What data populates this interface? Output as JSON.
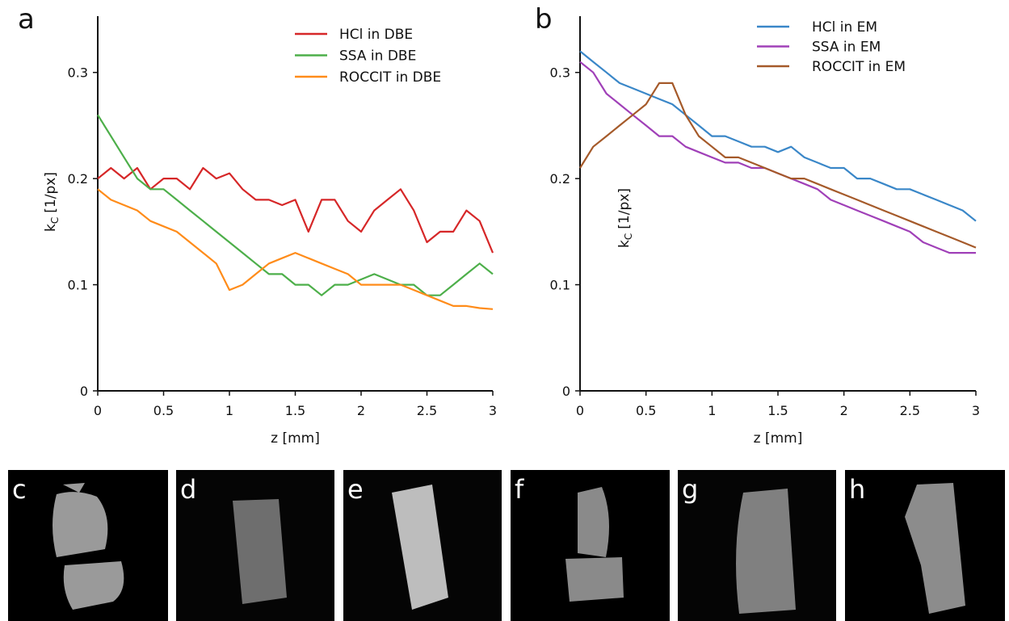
{
  "chart_data": [
    {
      "type": "line",
      "panel_label": "a",
      "xlabel": "z [mm]",
      "ylabel": "k",
      "ylabel_subscript": "C",
      "ylabel_unit": "[1/px]",
      "x": [
        0,
        0.1,
        0.2,
        0.3,
        0.4,
        0.5,
        0.6,
        0.7,
        0.8,
        0.9,
        1.0,
        1.1,
        1.2,
        1.3,
        1.4,
        1.5,
        1.6,
        1.7,
        1.8,
        1.9,
        2.0,
        2.1,
        2.2,
        2.3,
        2.4,
        2.5,
        2.6,
        2.7,
        2.8,
        2.9,
        3.0
      ],
      "xlim": [
        0,
        3
      ],
      "xticks": [
        0,
        0.5,
        1,
        1.5,
        2,
        2.5,
        3
      ],
      "ylim": [
        0,
        0.35
      ],
      "yticks": [
        0,
        0.1,
        0.2,
        0.3
      ],
      "grid": false,
      "legend": "upper right",
      "series": [
        {
          "name": "HCl in DBE",
          "color": "#d62728",
          "values": [
            0.2,
            0.21,
            0.2,
            0.21,
            0.19,
            0.2,
            0.2,
            0.19,
            0.21,
            0.2,
            0.205,
            0.19,
            0.18,
            0.18,
            0.175,
            0.18,
            0.15,
            0.18,
            0.18,
            0.16,
            0.15,
            0.17,
            0.18,
            0.19,
            0.17,
            0.14,
            0.15,
            0.15,
            0.17,
            0.16,
            0.13
          ]
        },
        {
          "name": "SSA in DBE",
          "color": "#4daf4a",
          "values": [
            0.26,
            0.24,
            0.22,
            0.2,
            0.19,
            0.19,
            0.18,
            0.17,
            0.16,
            0.15,
            0.14,
            0.13,
            0.12,
            0.11,
            0.11,
            0.1,
            0.1,
            0.09,
            0.1,
            0.1,
            0.105,
            0.11,
            0.105,
            0.1,
            0.1,
            0.09,
            0.09,
            0.1,
            0.11,
            0.12,
            0.11
          ]
        },
        {
          "name": "ROCCIT in DBE",
          "color": "#ff8c1a",
          "values": [
            0.19,
            0.18,
            0.175,
            0.17,
            0.16,
            0.155,
            0.15,
            0.14,
            0.13,
            0.12,
            0.095,
            0.1,
            0.11,
            0.12,
            0.125,
            0.13,
            0.125,
            0.12,
            0.115,
            0.11,
            0.1,
            0.1,
            0.1,
            0.1,
            0.095,
            0.09,
            0.085,
            0.08,
            0.08,
            0.078,
            0.077
          ]
        }
      ]
    },
    {
      "type": "line",
      "panel_label": "b",
      "xlabel": "z [mm]",
      "ylabel": "k",
      "ylabel_subscript": "C",
      "ylabel_unit": "[1/px]",
      "x": [
        0,
        0.1,
        0.2,
        0.3,
        0.4,
        0.5,
        0.6,
        0.7,
        0.8,
        0.9,
        1.0,
        1.1,
        1.2,
        1.3,
        1.4,
        1.5,
        1.6,
        1.7,
        1.8,
        1.9,
        2.0,
        2.1,
        2.2,
        2.3,
        2.4,
        2.5,
        2.6,
        2.7,
        2.8,
        2.9,
        3.0
      ],
      "xlim": [
        0,
        3
      ],
      "xticks": [
        0,
        0.5,
        1,
        1.5,
        2,
        2.5,
        3
      ],
      "ylim": [
        0,
        0.35
      ],
      "yticks": [
        0,
        0.1,
        0.2,
        0.3
      ],
      "grid": false,
      "legend": "upper right",
      "series": [
        {
          "name": "HCl in EM",
          "color": "#3a87c8",
          "values": [
            0.32,
            0.31,
            0.3,
            0.29,
            0.285,
            0.28,
            0.275,
            0.27,
            0.26,
            0.25,
            0.24,
            0.24,
            0.235,
            0.23,
            0.23,
            0.225,
            0.23,
            0.22,
            0.215,
            0.21,
            0.21,
            0.2,
            0.2,
            0.195,
            0.19,
            0.19,
            0.185,
            0.18,
            0.175,
            0.17,
            0.16
          ]
        },
        {
          "name": "SSA in EM",
          "color": "#a040b8",
          "values": [
            0.31,
            0.3,
            0.28,
            0.27,
            0.26,
            0.25,
            0.24,
            0.24,
            0.23,
            0.225,
            0.22,
            0.215,
            0.215,
            0.21,
            0.21,
            0.205,
            0.2,
            0.195,
            0.19,
            0.18,
            0.175,
            0.17,
            0.165,
            0.16,
            0.155,
            0.15,
            0.14,
            0.135,
            0.13,
            0.13,
            0.13
          ]
        },
        {
          "name": "ROCCIT in EM",
          "color": "#a55a2a",
          "values": [
            0.21,
            0.23,
            0.24,
            0.25,
            0.26,
            0.27,
            0.29,
            0.29,
            0.26,
            0.24,
            0.23,
            0.22,
            0.22,
            0.215,
            0.21,
            0.205,
            0.2,
            0.2,
            0.195,
            0.19,
            0.185,
            0.18,
            0.175,
            0.17,
            0.165,
            0.16,
            0.155,
            0.15,
            0.145,
            0.14,
            0.135
          ]
        }
      ]
    }
  ],
  "image_panels": [
    {
      "label": "c"
    },
    {
      "label": "d"
    },
    {
      "label": "e"
    },
    {
      "label": "f"
    },
    {
      "label": "g"
    },
    {
      "label": "h"
    }
  ]
}
